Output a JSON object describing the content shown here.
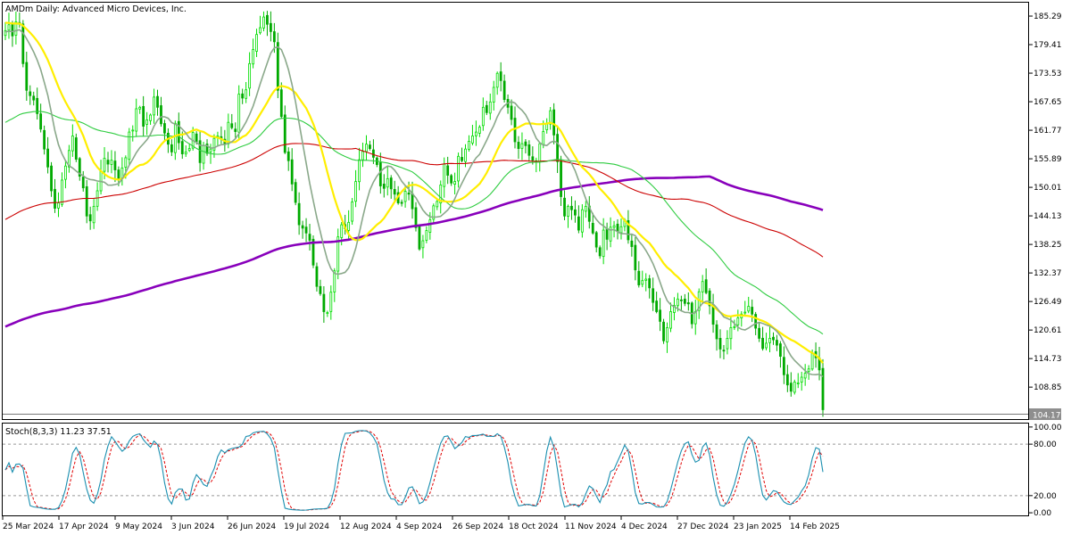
{
  "chart_data": [
    {
      "type": "candlestick",
      "title": "AMDm  Daily:  Advanced Micro Devices, Inc.",
      "last_price_label": "104.17",
      "y_ticks": [
        "185.29",
        "179.41",
        "173.53",
        "167.65",
        "161.77",
        "155.89",
        "150.01",
        "144.13",
        "138.25",
        "132.37",
        "126.49",
        "120.61",
        "114.73",
        "108.85"
      ],
      "ylim": [
        103.0,
        187.5
      ],
      "colors": {
        "up": "#00dd00",
        "down": "#00aa00",
        "ma_gray": "#8aa88a",
        "ma_yellow": "#ffee00",
        "ma_green": "#2ecc40",
        "ma_red": "#cc0000",
        "ma_purple": "#8800bb"
      },
      "close": [
        182.3,
        183.5,
        181.2,
        184.1,
        183.6,
        175.5,
        170.0,
        168.9,
        168.0,
        165.2,
        162.0,
        157.9,
        154.2,
        149.3,
        145.7,
        146.8,
        151.5,
        154.4,
        157.6,
        160.6,
        155.8,
        152.3,
        149.9,
        144.1,
        143.1,
        146.1,
        149.3,
        153.3,
        156.0,
        154.8,
        155.6,
        153.6,
        151.8,
        154.0,
        156.1,
        161.4,
        161.8,
        166.2,
        166.5,
        162.6,
        163.9,
        164.9,
        168.6,
        166.5,
        163.1,
        161.2,
        158.9,
        157.3,
        163.2,
        159.2,
        156.9,
        157.3,
        158.0,
        161.3,
        159.4,
        155.1,
        158.6,
        157.0,
        157.9,
        160.1,
        160.6,
        159.9,
        158.8,
        163.4,
        162.3,
        161.5,
        169.2,
        168.4,
        170.1,
        175.5,
        178.4,
        181.5,
        182.9,
        185.1,
        183.6,
        182.1,
        180.0,
        170.0,
        164.6,
        157.2,
        155.5,
        150.7,
        146.9,
        142.3,
        141.6,
        140.6,
        139.1,
        134.0,
        129.6,
        128.1,
        124.4,
        124.2,
        128.4,
        132.8,
        139.8,
        142.3,
        141.5,
        142.8,
        147.0,
        151.2,
        155.7,
        157.4,
        158.9,
        158.0,
        156.2,
        154.7,
        150.3,
        149.8,
        151.8,
        149.7,
        148.6,
        146.8,
        146.7,
        149.2,
        148.6,
        145.6,
        141.7,
        137.3,
        139.0,
        141.1,
        143.3,
        146.2,
        147.1,
        150.5,
        154.8,
        152.5,
        150.9,
        151.2,
        156.4,
        155.5,
        157.9,
        159.5,
        160.6,
        161.4,
        162.4,
        166.5,
        165.4,
        167.6,
        170.6,
        173.5,
        172.0,
        168.1,
        166.5,
        164.0,
        159.4,
        158.0,
        159.0,
        158.6,
        156.6,
        155.6,
        155.5,
        159.0,
        161.5,
        163.1,
        165.8,
        160.8,
        155.3,
        148.1,
        144.1,
        146.1,
        145.4,
        144.3,
        141.2,
        145.4,
        146.1,
        143.0,
        140.6,
        137.7,
        135.9,
        141.2,
        139.3,
        141.8,
        142.1,
        140.9,
        141.9,
        143.3,
        139.2,
        137.8,
        133.0,
        129.9,
        130.8,
        131.1,
        129.3,
        126.3,
        124.4,
        122.4,
        118.4,
        121.1,
        124.4,
        125.7,
        127.0,
        126.8,
        126.1,
        126.0,
        121.9,
        124.4,
        128.5,
        130.6,
        128.3,
        125.6,
        121.8,
        118.8,
        116.7,
        116.4,
        118.9,
        121.1,
        121.3,
        123.1,
        123.9,
        124.3,
        125.5,
        123.9,
        121.0,
        118.9,
        116.8,
        117.9,
        118.9,
        118.6,
        117.5,
        115.2,
        111.4,
        109.3,
        108.0,
        109.9,
        109.7,
        110.9,
        111.7,
        112.6,
        115.8,
        114.9,
        112.4,
        104.2
      ],
      "stochastic": {
        "label": "Stoch(8,3,3) 11.23 37.51",
        "period": [
          8,
          3,
          3
        ],
        "ylim": [
          -2,
          103
        ],
        "y_ticks": [
          "100.00",
          "80.00",
          "20.00",
          "0.00"
        ],
        "levels": [
          80,
          20
        ],
        "colors": {
          "main": "#1a8fb0",
          "signal": "#e00000",
          "level": "#999999"
        }
      }
    }
  ],
  "x_axis": {
    "labels": [
      "25 Mar 2024",
      "17 Apr 2024",
      "9 May 2024",
      "3 Jun 2024",
      "26 Jun 2024",
      "19 Jul 2024",
      "12 Aug 2024",
      "4 Sep 2024",
      "26 Sep 2024",
      "18 Oct 2024",
      "11 Nov 2024",
      "4 Dec 2024",
      "27 Dec 2024",
      "23 Jan 2025",
      "14 Feb 2025"
    ]
  }
}
